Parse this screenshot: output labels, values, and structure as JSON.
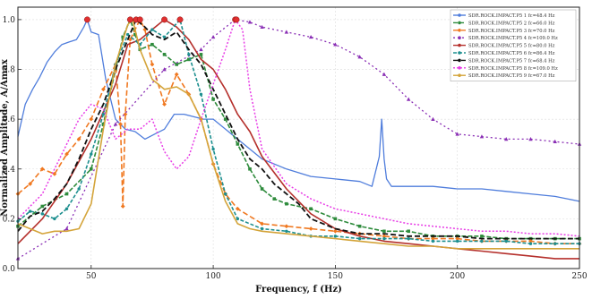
{
  "chart_data": {
    "type": "line",
    "xlabel": "Frequency, f (Hz)",
    "ylabel": "Normalized Amplitude, A/Amax",
    "xlim": [
      20,
      250
    ],
    "ylim": [
      0,
      1.05
    ],
    "xticks": [
      50,
      100,
      150,
      200,
      250
    ],
    "yticks": [
      0.0,
      0.2,
      0.4,
      0.6,
      0.8,
      1.0
    ],
    "grid": true,
    "legend_position": "top-right",
    "series": [
      {
        "name": "SDR.ROCK.IMPACT.P5 1 fc=48.4 Hz",
        "color": "#4f7ddc",
        "dash": "",
        "marker": "none",
        "width": 1.3,
        "x": [
          20,
          23,
          26,
          29,
          32,
          35,
          38,
          41,
          44,
          47,
          48.4,
          50,
          53,
          56,
          60,
          64,
          68,
          72,
          76,
          80,
          84,
          88,
          92,
          96,
          100,
          110,
          120,
          130,
          140,
          150,
          160,
          165,
          168,
          169,
          170,
          171,
          173,
          180,
          190,
          200,
          210,
          220,
          230,
          240,
          245,
          250
        ],
        "y": [
          0.53,
          0.66,
          0.72,
          0.77,
          0.83,
          0.87,
          0.9,
          0.91,
          0.92,
          0.97,
          1.0,
          0.95,
          0.94,
          0.76,
          0.6,
          0.56,
          0.55,
          0.52,
          0.54,
          0.56,
          0.62,
          0.62,
          0.61,
          0.6,
          0.6,
          0.52,
          0.44,
          0.4,
          0.37,
          0.36,
          0.35,
          0.33,
          0.45,
          0.6,
          0.44,
          0.36,
          0.33,
          0.33,
          0.33,
          0.32,
          0.32,
          0.31,
          0.3,
          0.29,
          0.28,
          0.27
        ]
      },
      {
        "name": "SDR.ROCK.IMPACT.P5 2 fc=66.0 Hz",
        "color": "#2e8b3c",
        "dash": "5,2",
        "marker": "square",
        "width": 1.6,
        "x": [
          20,
          30,
          40,
          50,
          55,
          60,
          63,
          66,
          68,
          70,
          75,
          80,
          85,
          90,
          95,
          100,
          105,
          110,
          115,
          120,
          125,
          130,
          140,
          150,
          160,
          170,
          180,
          190,
          200,
          210,
          220,
          230,
          240,
          250
        ],
        "y": [
          0.17,
          0.25,
          0.3,
          0.4,
          0.58,
          0.8,
          0.93,
          1.0,
          0.94,
          0.88,
          0.9,
          0.86,
          0.82,
          0.84,
          0.86,
          0.68,
          0.6,
          0.5,
          0.4,
          0.32,
          0.28,
          0.26,
          0.24,
          0.2,
          0.17,
          0.15,
          0.15,
          0.13,
          0.13,
          0.13,
          0.12,
          0.12,
          0.12,
          0.12
        ]
      },
      {
        "name": "SDR.ROCK.IMPACT.P5 3 fc=70.0 Hz",
        "color": "#f07820",
        "dash": "6,3",
        "marker": "diamond",
        "width": 1.6,
        "x": [
          20,
          25,
          30,
          35,
          40,
          45,
          50,
          55,
          60,
          62,
          63,
          64,
          66,
          70,
          72,
          75,
          80,
          85,
          90,
          95,
          100,
          105,
          110,
          120,
          130,
          140,
          150,
          160,
          170,
          180,
          190,
          200,
          210,
          220,
          230,
          240,
          250
        ],
        "y": [
          0.3,
          0.34,
          0.4,
          0.38,
          0.46,
          0.52,
          0.6,
          0.72,
          0.82,
          0.58,
          0.25,
          0.62,
          0.92,
          1.0,
          0.96,
          0.82,
          0.66,
          0.78,
          0.7,
          0.6,
          0.42,
          0.3,
          0.24,
          0.18,
          0.17,
          0.16,
          0.15,
          0.14,
          0.13,
          0.12,
          0.12,
          0.12,
          0.11,
          0.11,
          0.11,
          0.1,
          0.1
        ]
      },
      {
        "name": "SDR.ROCK.IMPACT.P5 4 fc=109.0 Hz",
        "color": "#8a2fb5",
        "dash": "2,3",
        "marker": "triangle",
        "width": 1.3,
        "x": [
          20,
          40,
          60,
          80,
          95,
          100,
          109,
          115,
          120,
          130,
          140,
          150,
          160,
          170,
          180,
          190,
          200,
          210,
          220,
          230,
          240,
          250
        ],
        "y": [
          0.04,
          0.16,
          0.58,
          0.8,
          0.88,
          0.93,
          1.0,
          0.99,
          0.97,
          0.95,
          0.93,
          0.9,
          0.85,
          0.78,
          0.68,
          0.6,
          0.54,
          0.53,
          0.52,
          0.52,
          0.51,
          0.5
        ]
      },
      {
        "name": "SDR.ROCK.IMPACT.P5 5 fc=80.0 Hz",
        "color": "#b5302c",
        "dash": "",
        "marker": "none",
        "width": 1.6,
        "x": [
          20,
          30,
          40,
          50,
          60,
          65,
          70,
          75,
          80,
          85,
          90,
          95,
          100,
          105,
          110,
          115,
          120,
          130,
          140,
          150,
          160,
          170,
          180,
          190,
          200,
          210,
          220,
          230,
          240,
          250
        ],
        "y": [
          0.1,
          0.2,
          0.34,
          0.52,
          0.74,
          0.9,
          0.92,
          0.96,
          1.0,
          0.97,
          0.92,
          0.84,
          0.8,
          0.72,
          0.62,
          0.55,
          0.45,
          0.32,
          0.22,
          0.16,
          0.13,
          0.11,
          0.1,
          0.09,
          0.08,
          0.07,
          0.06,
          0.05,
          0.04,
          0.04
        ]
      },
      {
        "name": "SDR.ROCK.IMPACT.P5 6 fc=86.4 Hz",
        "color": "#1d8f8f",
        "dash": "4,2",
        "marker": "circle",
        "width": 1.6,
        "x": [
          20,
          25,
          30,
          35,
          40,
          45,
          50,
          55,
          60,
          65,
          70,
          75,
          80,
          86.4,
          90,
          95,
          100,
          105,
          110,
          120,
          130,
          140,
          150,
          160,
          170,
          180,
          190,
          200,
          210,
          220,
          230,
          240,
          250
        ],
        "y": [
          0.19,
          0.23,
          0.22,
          0.2,
          0.24,
          0.32,
          0.46,
          0.62,
          0.82,
          0.94,
          0.9,
          0.96,
          0.93,
          1.0,
          0.86,
          0.7,
          0.48,
          0.3,
          0.2,
          0.16,
          0.15,
          0.13,
          0.13,
          0.12,
          0.12,
          0.12,
          0.11,
          0.11,
          0.11,
          0.11,
          0.1,
          0.1,
          0.1
        ]
      },
      {
        "name": "SDR.ROCK.IMPACT.P5 7 fc=68.4 Hz",
        "color": "#111111",
        "dash": "6,3",
        "marker": "none",
        "width": 1.8,
        "x": [
          20,
          25,
          30,
          35,
          40,
          45,
          50,
          55,
          60,
          65,
          68.4,
          72,
          75,
          80,
          85,
          90,
          95,
          100,
          105,
          110,
          115,
          120,
          125,
          130,
          135,
          140,
          150,
          160,
          170,
          180,
          190,
          200,
          210,
          220,
          230,
          240,
          250
        ],
        "y": [
          0.15,
          0.21,
          0.23,
          0.28,
          0.34,
          0.44,
          0.56,
          0.66,
          0.8,
          0.92,
          1.0,
          0.97,
          0.94,
          0.92,
          0.95,
          0.88,
          0.82,
          0.72,
          0.62,
          0.52,
          0.44,
          0.4,
          0.34,
          0.3,
          0.26,
          0.2,
          0.16,
          0.14,
          0.14,
          0.13,
          0.13,
          0.13,
          0.12,
          0.12,
          0.12,
          0.12,
          0.12
        ]
      },
      {
        "name": "SDR.ROCK.IMPACT.P5 8 fc=109.0 Hz",
        "color": "#e83ce6",
        "dash": "2,2",
        "marker": "none",
        "width": 1.5,
        "x": [
          20,
          30,
          40,
          45,
          50,
          55,
          60,
          65,
          70,
          75,
          80,
          85,
          90,
          95,
          100,
          105,
          109,
          112,
          115,
          120,
          130,
          140,
          150,
          160,
          170,
          180,
          190,
          200,
          210,
          220,
          230,
          240,
          250
        ],
        "y": [
          0.2,
          0.3,
          0.5,
          0.6,
          0.66,
          0.64,
          0.52,
          0.56,
          0.56,
          0.6,
          0.47,
          0.4,
          0.45,
          0.6,
          0.74,
          0.88,
          1.0,
          0.96,
          0.72,
          0.48,
          0.34,
          0.28,
          0.24,
          0.22,
          0.2,
          0.18,
          0.17,
          0.16,
          0.15,
          0.15,
          0.14,
          0.14,
          0.13
        ]
      },
      {
        "name": "SDR.ROCK.IMPACT.P5 9 fc=67.0 Hz",
        "color": "#d4a43a",
        "dash": "",
        "marker": "none",
        "width": 1.6,
        "x": [
          20,
          25,
          30,
          35,
          40,
          45,
          50,
          55,
          60,
          65,
          67,
          70,
          75,
          80,
          85,
          90,
          95,
          100,
          105,
          110,
          115,
          120,
          130,
          140,
          150,
          160,
          170,
          180,
          190,
          200,
          210,
          220,
          230,
          240,
          250
        ],
        "y": [
          0.18,
          0.16,
          0.14,
          0.15,
          0.15,
          0.16,
          0.26,
          0.56,
          0.82,
          0.98,
          1.0,
          0.88,
          0.76,
          0.72,
          0.73,
          0.7,
          0.6,
          0.42,
          0.27,
          0.18,
          0.16,
          0.15,
          0.14,
          0.13,
          0.12,
          0.11,
          0.1,
          0.09,
          0.09,
          0.08,
          0.08,
          0.08,
          0.08,
          0.08,
          0.08
        ]
      }
    ],
    "peaks": {
      "color": "#e03030",
      "x": [
        48.4,
        66.0,
        68.4,
        70.0,
        80.0,
        86.4,
        109.0,
        109.5
      ],
      "y": [
        1.0,
        1.0,
        1.0,
        1.0,
        1.0,
        1.0,
        1.0,
        1.0
      ]
    }
  }
}
